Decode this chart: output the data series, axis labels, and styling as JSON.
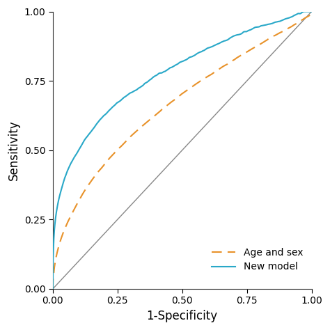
{
  "title": "",
  "xlabel": "1-Specificity",
  "ylabel": "Sensitivity",
  "xlim": [
    0,
    1
  ],
  "ylim": [
    0,
    1
  ],
  "xticks": [
    0.0,
    0.25,
    0.5,
    0.75,
    1.0
  ],
  "yticks": [
    0.0,
    0.25,
    0.5,
    0.75,
    1.0
  ],
  "diagonal_color": "#888888",
  "age_sex_color": "#E8922A",
  "new_model_color": "#29A8C8",
  "age_sex_label": "Age and sex",
  "new_model_label": "New model",
  "background_color": "#ffffff",
  "tick_label_size": 10,
  "axis_label_size": 12,
  "legend_fontsize": 10,
  "figsize": [
    4.74,
    4.74
  ],
  "dpi": 100
}
